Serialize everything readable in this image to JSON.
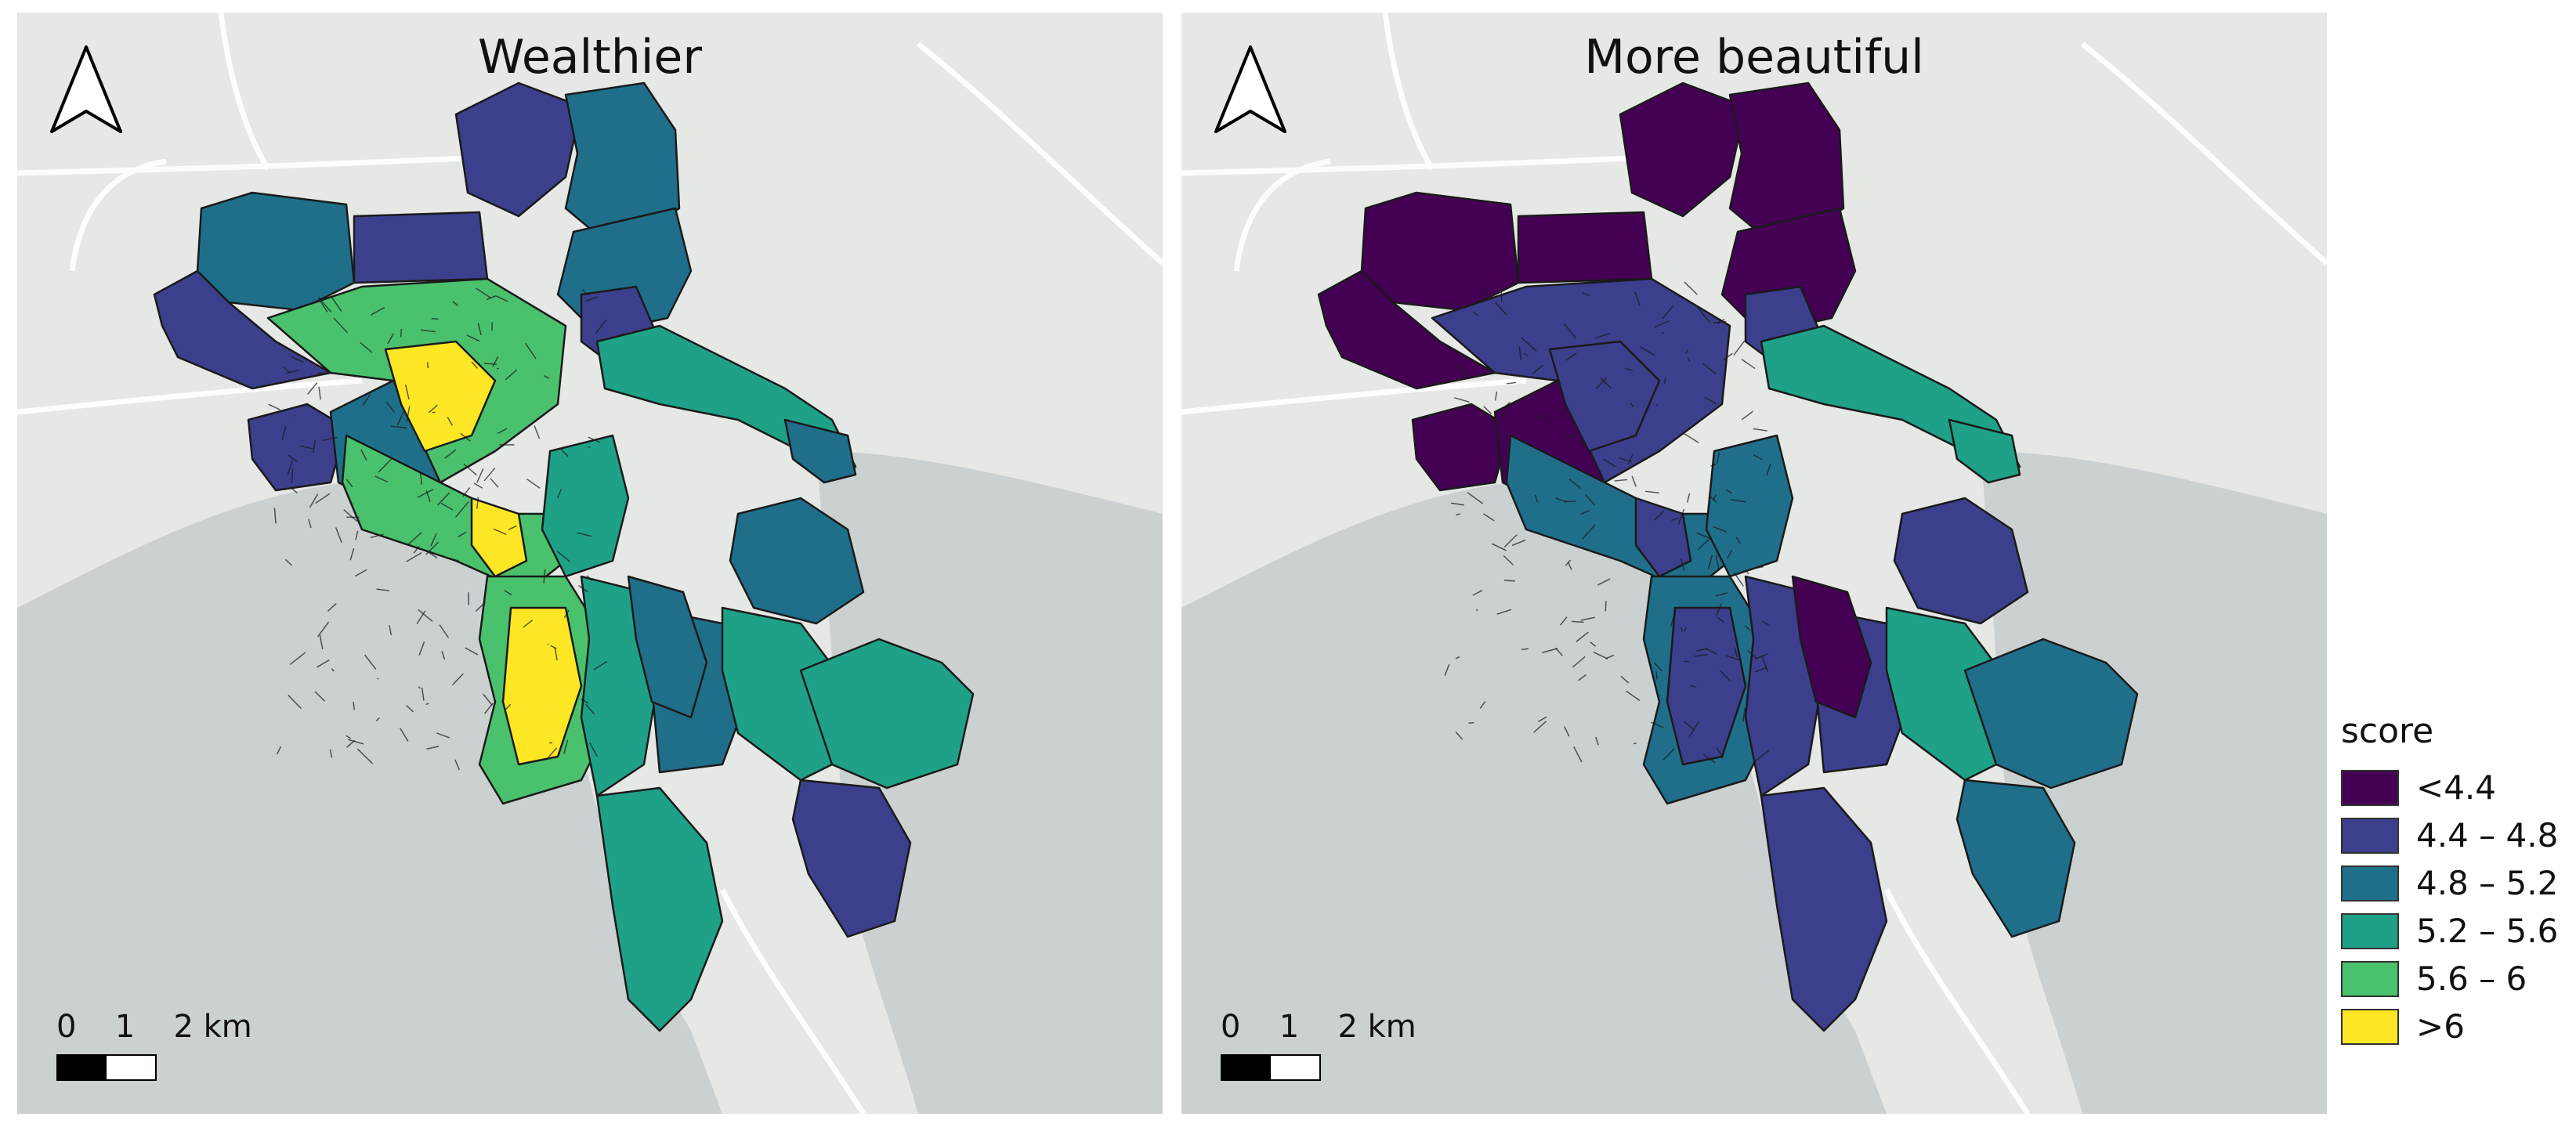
{
  "maps": [
    {
      "title": "Wealthier",
      "scale_labels": [
        "0",
        "1",
        "2 km"
      ],
      "region_classes": {
        "nw-large-1": 2,
        "nw-large-2": 1,
        "north-strips": 1,
        "north-mid": 2,
        "north-top": 1,
        "ne-block": 2,
        "ne-tip": 1,
        "east-arm": 3,
        "east-arm-tip": 2,
        "west-low": 1,
        "west-mid": 2,
        "center-dense": 4,
        "center-core": 5,
        "coast-green": 4,
        "coast-yellow": 5,
        "mid-neck": 3,
        "south-west": 4,
        "south-core": 5,
        "south-mid": 3,
        "south-east-1": 2,
        "south-east-2": 3,
        "far-east-1": 3,
        "far-east-2": 1,
        "south-tail": 3,
        "south-spine": 2,
        "east-lobe": 2
      }
    },
    {
      "title": "More beautiful",
      "scale_labels": [
        "0",
        "1",
        "2 km"
      ],
      "region_classes": {
        "nw-large-1": 0,
        "nw-large-2": 0,
        "north-strips": 0,
        "north-mid": 0,
        "north-top": 0,
        "ne-block": 0,
        "ne-tip": 1,
        "east-arm": 3,
        "east-arm-tip": 3,
        "west-low": 0,
        "west-mid": 0,
        "center-dense": 1,
        "center-core": 1,
        "coast-green": 2,
        "coast-yellow": 1,
        "mid-neck": 2,
        "south-west": 2,
        "south-core": 1,
        "south-mid": 1,
        "south-east-1": 1,
        "south-east-2": 3,
        "far-east-1": 2,
        "far-east-2": 2,
        "south-tail": 1,
        "south-spine": 0,
        "east-lobe": 1
      }
    }
  ],
  "legend": {
    "title": "score",
    "classes": [
      {
        "label": "<4.4",
        "color": "#440154"
      },
      {
        "label": "4.4 – 4.8",
        "color": "#3b3f8c"
      },
      {
        "label": "4.8 – 5.2",
        "color": "#1f6f8b"
      },
      {
        "label": "5.2 – 5.6",
        "color": "#1fa187"
      },
      {
        "label": "5.6 – 6",
        "color": "#4ac16d"
      },
      {
        "label": ">6",
        "color": "#fde725"
      }
    ]
  },
  "colors": {
    "water": "#cbd0d0",
    "land": "#e6e8e6",
    "road": "#ffffff",
    "boundary": "#1a1a1a"
  }
}
